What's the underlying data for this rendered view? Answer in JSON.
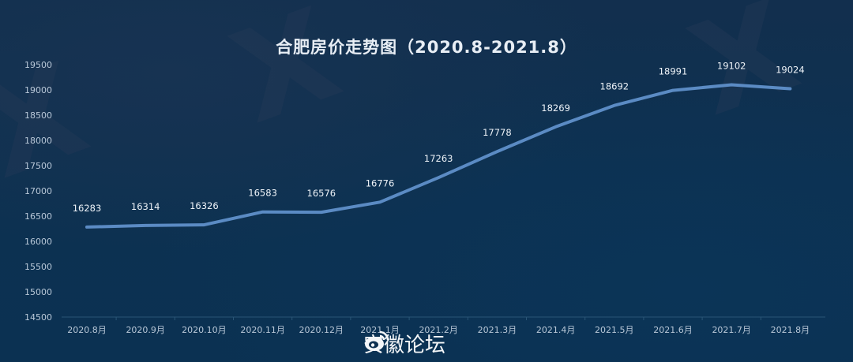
{
  "chart_data": {
    "type": "line",
    "title": "合肥房价走势图（2020.8-2021.8）",
    "xlabel": "",
    "ylabel": "",
    "categories": [
      "2020.8月",
      "2020.9月",
      "2020.10月",
      "2020.11月",
      "2020.12月",
      "2021.1月",
      "2021.2月",
      "2021.3月",
      "2021.4月",
      "2021.5月",
      "2021.6月",
      "2021.7月",
      "2021.8月"
    ],
    "series": [
      {
        "name": "合肥房价",
        "values": [
          16283,
          16314,
          16326,
          16583,
          16576,
          16776,
          17263,
          17778,
          18269,
          18692,
          18991,
          19102,
          19024
        ],
        "color": "#5b8bc4"
      }
    ],
    "ylim": [
      14500,
      19500
    ],
    "yticks": [
      19500,
      19000,
      18500,
      18000,
      17500,
      17000,
      16500,
      16000,
      15500,
      15000,
      14500
    ],
    "grid": false,
    "data_labels": true,
    "legend": "none"
  },
  "watermark": {
    "platform_icon": "weibo-icon",
    "text": "安徽论坛"
  },
  "colors": {
    "background": "#0d3050",
    "line": "#5b8bc4",
    "text": "#e8eef5",
    "axis_text": "#b9c8d8"
  }
}
